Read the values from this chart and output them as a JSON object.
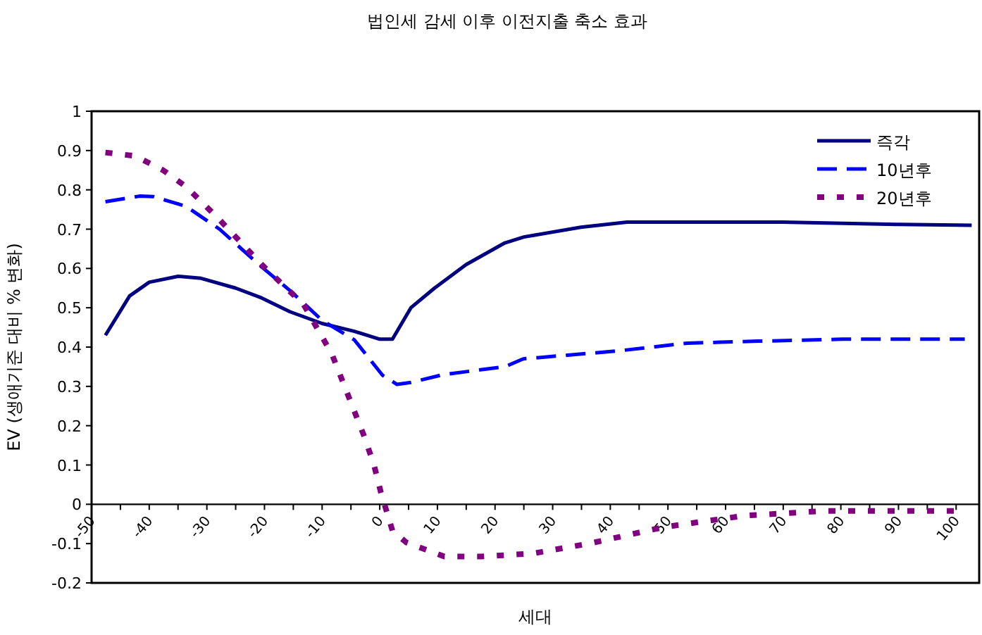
{
  "chart_data": {
    "type": "line",
    "title": "법인세 감세 이후 이전지출 축소 효과",
    "xlabel": "세대",
    "ylabel": "EV (생애기준 대비 % 변화)",
    "legend": "top right",
    "grid": false,
    "marker": "none",
    "xlim": [
      -50,
      104
    ],
    "ylim": [
      -0.2,
      1
    ],
    "xticks": [
      -50,
      {
        "value": -45,
        "label": null
      },
      -40,
      {
        "value": -35,
        "label": null
      },
      -30,
      {
        "value": -25,
        "label": null
      },
      -20,
      {
        "value": -15,
        "label": null
      },
      -10,
      {
        "value": -5,
        "label": null
      },
      0,
      {
        "value": 5,
        "label": null
      },
      10,
      {
        "value": 15,
        "label": null
      },
      20,
      {
        "value": 25,
        "label": null
      },
      30,
      {
        "value": 35,
        "label": null
      },
      40,
      {
        "value": 45,
        "label": null
      },
      50,
      {
        "value": 55,
        "label": null
      },
      60,
      {
        "value": 65,
        "label": null
      },
      70,
      {
        "value": 75,
        "label": null
      },
      80,
      {
        "value": 85,
        "label": null
      },
      90,
      {
        "value": 95,
        "label": null
      },
      100
    ],
    "yticks": [
      -0.2,
      -0.1,
      0,
      0.1,
      0.2,
      0.3,
      0.4,
      0.5,
      0.6,
      0.7,
      0.8,
      0.9,
      1
    ],
    "series": [
      {
        "name": "즉각",
        "color": "#000080",
        "line_style": "solid",
        "x": [
          -47.6,
          -43.4,
          -40,
          -35,
          -31,
          -25,
          -20.5,
          -15.6,
          -10,
          -4.4,
          0,
          2.2,
          5.4,
          9.5,
          15,
          21.7,
          25,
          34.9,
          42.9,
          69.8,
          90,
          102.7
        ],
        "values": [
          0.43,
          0.53,
          0.565,
          0.58,
          0.575,
          0.55,
          0.525,
          0.49,
          0.46,
          0.44,
          0.42,
          0.42,
          0.5,
          0.55,
          0.61,
          0.665,
          0.68,
          0.705,
          0.718,
          0.718,
          0.712,
          0.71
        ]
      },
      {
        "name": "10년후",
        "color": "#0000ff",
        "line_style": "dashed",
        "x": [
          -47.6,
          -41.7,
          -39.3,
          -33.6,
          -27.8,
          -20.5,
          -15.6,
          -10,
          -4.4,
          0.5,
          3,
          5.4,
          11,
          21.7,
          24.9,
          41.2,
          53.4,
          65.6,
          80.2,
          101.5
        ],
        "values": [
          0.77,
          0.784,
          0.783,
          0.758,
          0.7,
          0.604,
          0.544,
          0.468,
          0.418,
          0.328,
          0.305,
          0.31,
          0.33,
          0.35,
          0.37,
          0.39,
          0.41,
          0.415,
          0.42,
          0.42
        ]
      },
      {
        "name": "20년후",
        "color": "#800080",
        "line_style": "dotted",
        "x": [
          -47.6,
          -42.4,
          -37.6,
          -33.6,
          -27.8,
          -20.5,
          -13.2,
          -8.3,
          -2.7,
          -1,
          0.2,
          2.2,
          4.6,
          11.2,
          17.6,
          26.6,
          36.3,
          49.3,
          63.2,
          77,
          99.8
        ],
        "values": [
          0.895,
          0.886,
          0.85,
          0.808,
          0.724,
          0.61,
          0.508,
          0.382,
          0.173,
          0.1,
          0.03,
          -0.067,
          -0.097,
          -0.133,
          -0.133,
          -0.125,
          -0.1,
          -0.058,
          -0.029,
          -0.017,
          -0.017
        ]
      }
    ]
  }
}
